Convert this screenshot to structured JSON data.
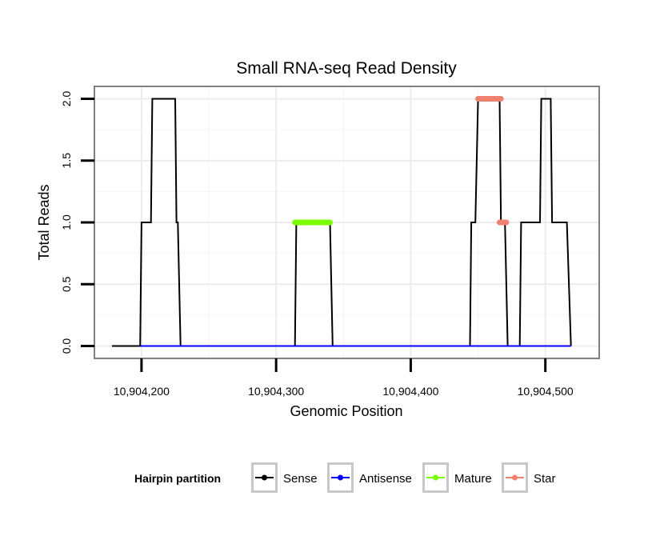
{
  "chart_data": {
    "type": "line",
    "title": "Small RNA-seq Read Density",
    "xlabel": "Genomic Position",
    "ylabel": "Total Reads",
    "xlim": [
      10904165,
      10904540
    ],
    "ylim": [
      -0.1,
      2.1
    ],
    "xticks": [
      10904200,
      10904300,
      10904400,
      10904500
    ],
    "xtick_labels": [
      "10,904,200",
      "10,904,300",
      "10,904,400",
      "10,904,500"
    ],
    "yticks": [
      0,
      0.5,
      1,
      1.5,
      2
    ],
    "ytick_labels": [
      "0.0",
      "0.5",
      "1.0",
      "1.5",
      "2.0"
    ],
    "grid": true,
    "legend_title": "Hairpin partition",
    "legend_position": "bottom",
    "series": [
      {
        "name": "Sense",
        "color": "#000000",
        "style": "line",
        "points": [
          [
            10904178,
            0
          ],
          [
            10904199,
            0
          ],
          [
            10904200,
            1
          ],
          [
            10904207,
            1
          ],
          [
            10904208,
            2
          ],
          [
            10904225,
            2
          ],
          [
            10904226,
            1
          ],
          [
            10904227,
            1
          ],
          [
            10904229,
            0
          ],
          [
            10904314,
            0
          ],
          [
            10904315,
            1
          ],
          [
            10904340,
            1
          ],
          [
            10904342,
            0
          ],
          [
            10904444,
            0
          ],
          [
            10904445,
            1
          ],
          [
            10904448,
            1
          ],
          [
            10904450,
            2
          ],
          [
            10904466,
            2
          ],
          [
            10904467,
            1
          ],
          [
            10904470,
            1
          ],
          [
            10904472,
            0
          ],
          [
            10904481,
            0
          ],
          [
            10904482,
            1
          ],
          [
            10904496,
            1
          ],
          [
            10904497,
            2
          ],
          [
            10904504,
            2
          ],
          [
            10904505,
            1
          ],
          [
            10904516,
            1
          ],
          [
            10904519,
            0
          ]
        ]
      },
      {
        "name": "Antisense",
        "color": "#0000ff",
        "style": "line",
        "points": [
          [
            10904199,
            0
          ],
          [
            10904229,
            0
          ],
          [
            10904314,
            0
          ],
          [
            10904342,
            0
          ],
          [
            10904444,
            0
          ],
          [
            10904472,
            0
          ],
          [
            10904481,
            0
          ],
          [
            10904519,
            0
          ]
        ]
      },
      {
        "name": "Mature",
        "color": "#7cfc00",
        "style": "thick",
        "segments": [
          [
            10904314,
            10904340,
            1
          ]
        ]
      },
      {
        "name": "Star",
        "color": "#f08070",
        "style": "thick",
        "segments": [
          [
            10904450,
            10904467,
            2
          ],
          [
            10904466,
            10904471,
            1
          ]
        ]
      }
    ]
  }
}
